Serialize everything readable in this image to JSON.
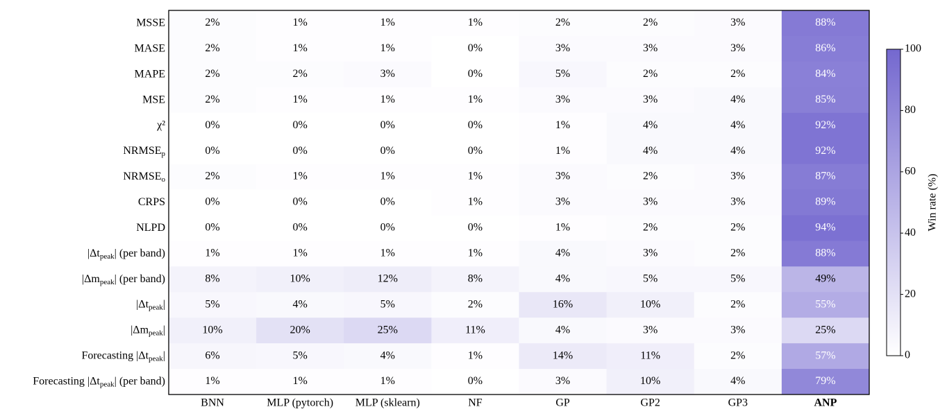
{
  "chart_data": {
    "type": "heatmap",
    "rows": [
      {
        "pre": "MSSE"
      },
      {
        "pre": "MASE"
      },
      {
        "pre": "MAPE"
      },
      {
        "pre": "MSE"
      },
      {
        "pre": "χ²"
      },
      {
        "pre": "NRMSE",
        "sub": "p"
      },
      {
        "pre": "NRMSE",
        "sub": "o"
      },
      {
        "pre": "CRPS"
      },
      {
        "pre": "NLPD"
      },
      {
        "pre": "|Δt",
        "sub": "peak",
        "post": "| (per band)"
      },
      {
        "pre": "|Δm",
        "sub": "peak",
        "post": "| (per band)"
      },
      {
        "pre": "|Δt",
        "sub": "peak",
        "post": "|"
      },
      {
        "pre": "|Δm",
        "sub": "peak",
        "post": "|"
      },
      {
        "pre": "Forecasting |Δt",
        "sub": "peak",
        "post": "|"
      },
      {
        "pre": "Forecasting |Δt",
        "sub": "peak",
        "post": "| (per band)"
      }
    ],
    "columns": [
      "BNN",
      "MLP (pytorch)",
      "MLP (sklearn)",
      "NF",
      "GP",
      "GP2",
      "GP3",
      "ANP"
    ],
    "bold_columns": [
      7
    ],
    "values": [
      [
        2,
        1,
        1,
        1,
        2,
        2,
        3,
        88
      ],
      [
        2,
        1,
        1,
        0,
        3,
        3,
        3,
        86
      ],
      [
        2,
        2,
        3,
        0,
        5,
        2,
        2,
        84
      ],
      [
        2,
        1,
        1,
        1,
        3,
        3,
        4,
        85
      ],
      [
        0,
        0,
        0,
        0,
        1,
        4,
        4,
        92
      ],
      [
        0,
        0,
        0,
        0,
        1,
        4,
        4,
        92
      ],
      [
        2,
        1,
        1,
        1,
        3,
        2,
        3,
        87
      ],
      [
        0,
        0,
        0,
        1,
        3,
        3,
        3,
        89
      ],
      [
        0,
        0,
        0,
        0,
        1,
        2,
        2,
        94
      ],
      [
        1,
        1,
        1,
        1,
        4,
        3,
        2,
        88
      ],
      [
        8,
        10,
        12,
        8,
        4,
        5,
        5,
        49
      ],
      [
        5,
        4,
        5,
        2,
        16,
        10,
        2,
        55
      ],
      [
        10,
        20,
        25,
        11,
        4,
        3,
        3,
        25
      ],
      [
        6,
        5,
        4,
        1,
        14,
        11,
        2,
        57
      ],
      [
        1,
        1,
        1,
        0,
        3,
        10,
        4,
        79
      ]
    ],
    "value_labels": [
      [
        "2%",
        "1%",
        "1%",
        "1%",
        "2%",
        "2%",
        "3%",
        "88%"
      ],
      [
        "2%",
        "1%",
        "1%",
        "0%",
        "3%",
        "3%",
        "3%",
        "86%"
      ],
      [
        "2%",
        "2%",
        "3%",
        "0%",
        "5%",
        "2%",
        "2%",
        "84%"
      ],
      [
        "2%",
        "1%",
        "1%",
        "1%",
        "3%",
        "3%",
        "4%",
        "85%"
      ],
      [
        "0%",
        "0%",
        "0%",
        "0%",
        "1%",
        "4%",
        "4%",
        "92%"
      ],
      [
        "0%",
        "0%",
        "0%",
        "0%",
        "1%",
        "4%",
        "4%",
        "92%"
      ],
      [
        "2%",
        "1%",
        "1%",
        "1%",
        "3%",
        "2%",
        "3%",
        "87%"
      ],
      [
        "0%",
        "0%",
        "0%",
        "1%",
        "3%",
        "3%",
        "3%",
        "89%"
      ],
      [
        "0%",
        "0%",
        "0%",
        "0%",
        "1%",
        "2%",
        "2%",
        "94%"
      ],
      [
        "1%",
        "1%",
        "1%",
        "1%",
        "4%",
        "3%",
        "2%",
        "88%"
      ],
      [
        "8%",
        "10%",
        "12%",
        "8%",
        "4%",
        "5%",
        "5%",
        "49%"
      ],
      [
        "5%",
        "4%",
        "5%",
        "2%",
        "16%",
        "10%",
        "2%",
        "55%"
      ],
      [
        "10%",
        "20%",
        "25%",
        "11%",
        "4%",
        "3%",
        "3%",
        "25%"
      ],
      [
        "6%",
        "5%",
        "4%",
        "1%",
        "14%",
        "11%",
        "2%",
        "57%"
      ],
      [
        "1%",
        "1%",
        "1%",
        "0%",
        "3%",
        "10%",
        "4%",
        "79%"
      ]
    ],
    "color_low": "#ffffff",
    "color_high": "#7468cf",
    "zlim": [
      0,
      100
    ],
    "zticks": [
      0,
      20,
      40,
      60,
      80,
      100
    ],
    "colorbar_label": "Win rate (%)"
  }
}
